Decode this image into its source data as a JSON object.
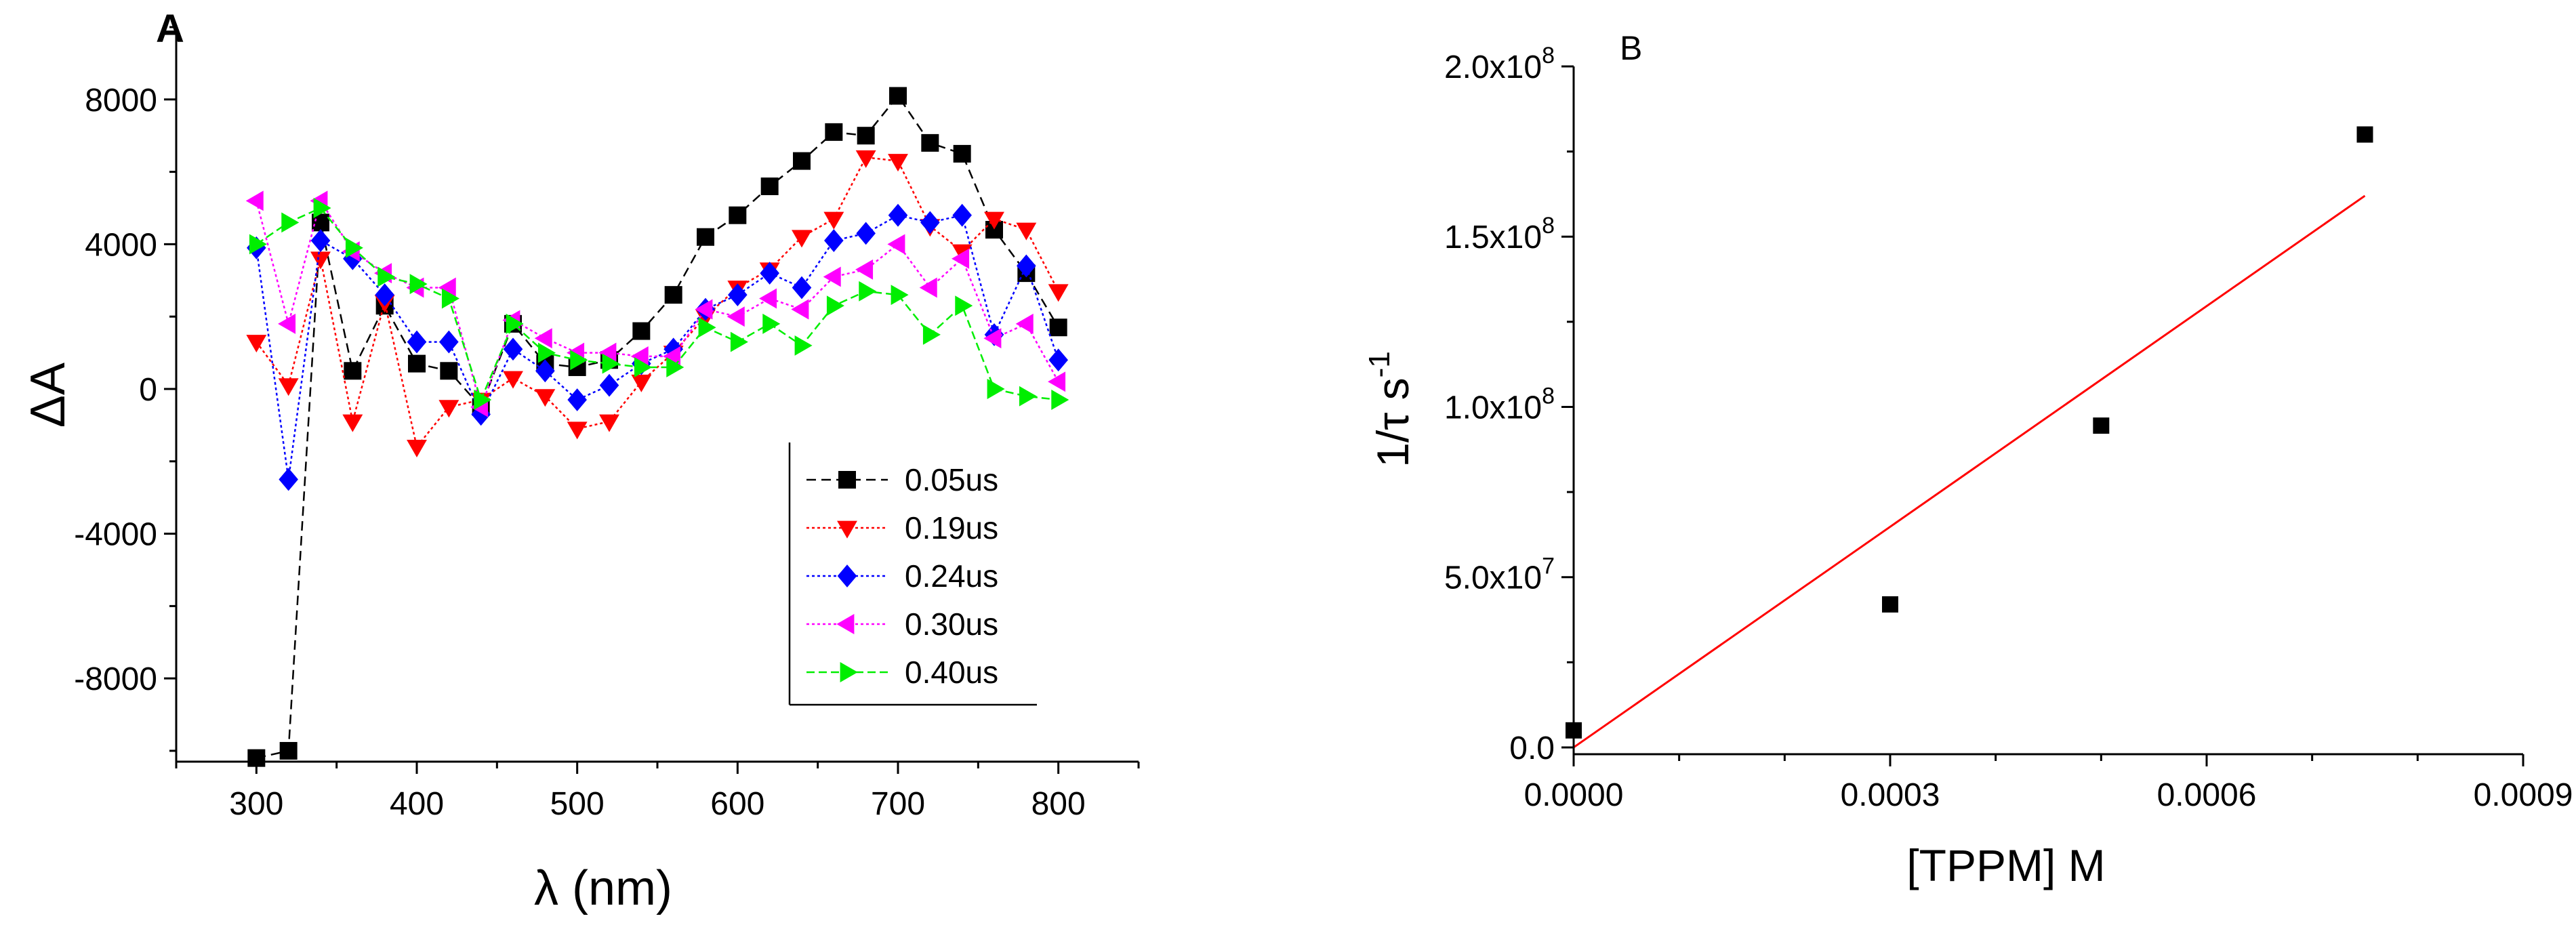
{
  "chart_data": [
    {
      "panel": "A",
      "type": "line",
      "xlabel": "λ (nm)",
      "ylabel": "ΔA",
      "xlim": [
        250,
        850
      ],
      "ylim": [
        -10300,
        10000
      ],
      "xticks": [
        300,
        400,
        500,
        600,
        700,
        800
      ],
      "yticks": [
        -8000,
        -4000,
        0,
        4000,
        8000
      ],
      "x": [
        300,
        320,
        340,
        360,
        380,
        400,
        420,
        440,
        460,
        480,
        500,
        520,
        540,
        560,
        580,
        600,
        620,
        640,
        660,
        680,
        700,
        720,
        740,
        760,
        780,
        800
      ],
      "series": [
        {
          "name": "0.05us",
          "color": "#000000",
          "marker": "square",
          "values": [
            -10200,
            -10000,
            4600,
            500,
            2300,
            700,
            500,
            -500,
            1800,
            700,
            600,
            800,
            1600,
            2600,
            4200,
            4800,
            5600,
            6300,
            7100,
            7000,
            8100,
            6800,
            6500,
            4400,
            3200,
            1700
          ]
        },
        {
          "name": "0.19us",
          "color": "#ff0000",
          "marker": "triangle-down",
          "values": [
            1300,
            100,
            3600,
            -900,
            2400,
            -1600,
            -500,
            -300,
            300,
            -200,
            -1100,
            -900,
            200,
            1000,
            2000,
            2800,
            3300,
            4200,
            4700,
            6400,
            6300,
            4500,
            3800,
            4700,
            4400,
            2700
          ]
        },
        {
          "name": "0.24us",
          "color": "#0000ff",
          "marker": "diamond",
          "values": [
            3900,
            -2500,
            4100,
            3600,
            2600,
            1300,
            1300,
            -700,
            1100,
            500,
            -300,
            100,
            700,
            1100,
            2200,
            2600,
            3200,
            2800,
            4100,
            4300,
            4800,
            4600,
            4800,
            1500,
            3400,
            800
          ]
        },
        {
          "name": "0.30us",
          "color": "#ff00ff",
          "marker": "triangle-left",
          "values": [
            5200,
            1800,
            5200,
            3800,
            3200,
            2800,
            2800,
            -500,
            1900,
            1400,
            1000,
            1000,
            900,
            900,
            2200,
            2000,
            2500,
            2200,
            3100,
            3300,
            4000,
            2800,
            3600,
            1400,
            1800,
            200
          ]
        },
        {
          "name": "0.40us",
          "color": "#00ee00",
          "marker": "triangle-right",
          "values": [
            4000,
            4600,
            5000,
            3900,
            3100,
            2900,
            2500,
            -300,
            1800,
            1000,
            800,
            700,
            600,
            600,
            1700,
            1300,
            1800,
            1200,
            2300,
            2700,
            2600,
            1500,
            2300,
            0,
            -200,
            -300
          ]
        }
      ],
      "legend": {
        "placement": "lower-right inside",
        "labels": [
          "0.05us",
          "0.19us",
          "0.24us",
          "0.30us",
          "0.40us"
        ]
      }
    },
    {
      "panel": "B",
      "type": "scatter",
      "xlabel": "[TPPM] M",
      "ylabel_main": "1/τ s",
      "ylabel_sup": "-1",
      "xlim": [
        0,
        0.0009
      ],
      "ylim": [
        -2000000,
        200000000
      ],
      "xticks": [
        "0.0000",
        "0.0003",
        "0.0006",
        "0.0009"
      ],
      "xtick_values": [
        0,
        0.0003,
        0.0006,
        0.0009
      ],
      "yticks": [
        {
          "value": 0,
          "label": "0.0"
        },
        {
          "value": 50000000,
          "mantissa": "5.0x10",
          "exp": "7"
        },
        {
          "value": 100000000,
          "mantissa": "1.0x10",
          "exp": "8"
        },
        {
          "value": 150000000,
          "mantissa": "1.5x10",
          "exp": "8"
        },
        {
          "value": 200000000,
          "mantissa": "2.0x10",
          "exp": "8"
        }
      ],
      "points": [
        {
          "x": 0,
          "y": 5000000
        },
        {
          "x": 0.0003,
          "y": 42000000
        },
        {
          "x": 0.0005,
          "y": 94500000
        },
        {
          "x": 0.00075,
          "y": 180000000
        }
      ],
      "fit_line": {
        "x": [
          0,
          0.00075
        ],
        "y": [
          0,
          162000000
        ],
        "color": "#ff0000"
      },
      "point_color": "#000000"
    }
  ]
}
